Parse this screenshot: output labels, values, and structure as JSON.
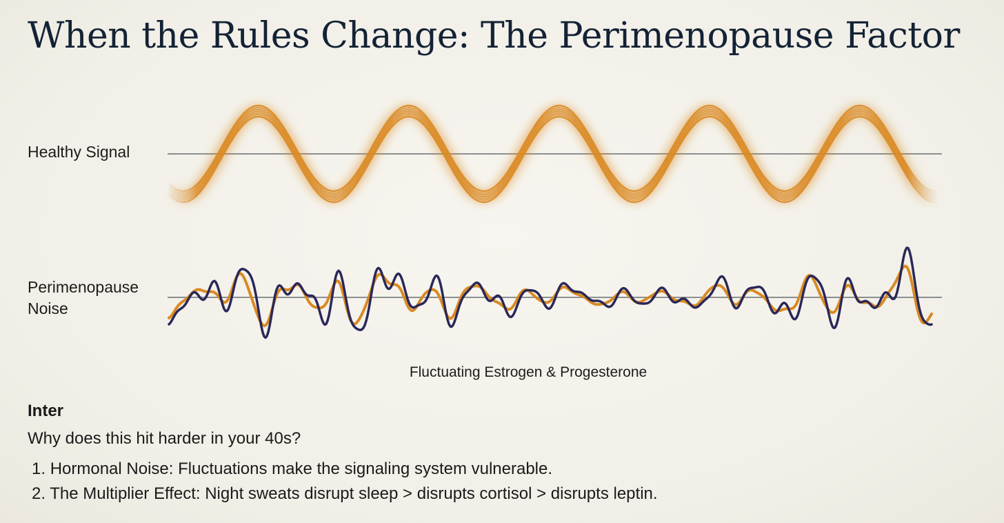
{
  "title": "When the Rules Change: The Perimenopause Factor",
  "labels": {
    "healthy": "Healthy Signal",
    "noise_line1": "Perimenopause",
    "noise_line2": "Noise"
  },
  "caption": "Fluctuating Estrogen & Progesterone",
  "inter": "Inter",
  "question": "Why does this hit harder in your 40s?",
  "points": [
    {
      "number": "1.",
      "text": "Hormonal Noise: Fluctuations make the signaling system vulnerable."
    },
    {
      "number": "2.",
      "text": "The Multiplier Effect: Night sweats disrupt sleep > disrupts cortisol > disrupts leptin."
    }
  ],
  "colors": {
    "orange": "#d98a24",
    "navy": "#2a2858",
    "baseline": "#6b6f73",
    "title": "#142235"
  }
}
